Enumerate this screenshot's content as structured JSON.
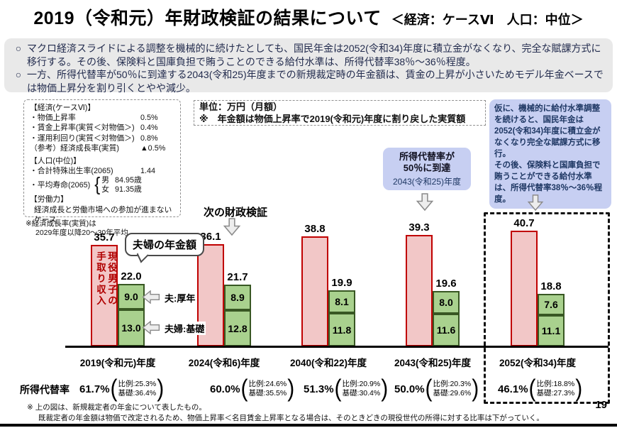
{
  "title": {
    "main": "2019（令和元）年財政検証の結果について",
    "case_label": "＜経済：ケースⅥ　人口：中位＞"
  },
  "bullet_marker": "○",
  "bullets": [
    "マクロ経済スライドによる調整を機械的に続けたとしても、国民年金は2052(令和34)年度に積立金がなくなり、完全な賦課方式に移行する。その後、保険料と国庫負担で賄うことのできる給付水準は、所得代替率38％～36％程度。",
    "一方、所得代替率が50％に到達する2043(令和25)年度までの新規裁定時の年金額は、賃金の上昇が小さいためモデル年金ベースでは物価上昇分を割り引くとやや減少。"
  ],
  "param_box": {
    "econ_header": "【経済(ケースⅥ)】",
    "econ_rows": [
      {
        "label": "・物価上昇率",
        "value": "0.5%"
      },
      {
        "label": "・賃金上昇率(実質＜対物価＞)",
        "value": "0.4%"
      },
      {
        "label": "・運用利回り(実質＜対物価＞)",
        "value": "0.8%"
      },
      {
        "label": "（参考）経済成長率(実質)",
        "value": "▲0.5%"
      }
    ],
    "pop_header": "【人口(中位)】",
    "birth_label": "・合計特殊出生率(2065)",
    "birth_value": "1.44",
    "life_label": "・平均寿命(2065)",
    "life_male_label": "男",
    "life_male_value": "84.95歳",
    "life_female_label": "女",
    "life_female_value": "91.35歳",
    "labor_header": "【労働力】",
    "labor_note": "経済成長と労働市場への参加が進まないケース",
    "footnote_line1": "※経済成長率(実質)は",
    "footnote_line2": "2029年度以降20～30年平均"
  },
  "unit_box": {
    "line1": "単位：万円（月額）",
    "line2": "※　年金額は物価上昇率で2019(令和元)年度に割り戻した実質額"
  },
  "blue_note": {
    "p1": "仮に、機械的に給付水準調整を続けると、国民年金は2052(令和34)年度に積立金がなくなり完全な賦課方式に移行。",
    "p2": "その後、保険料と国庫負担で賄うことができる給付水準は、所得代替率38％～36％程度。"
  },
  "callout": {
    "line1": "所得代替率が",
    "line2": "50％に到達",
    "line3": "2043(令和25)年度"
  },
  "next_verification": {
    "label": "次の財政検証"
  },
  "bubble": {
    "label": "夫婦の年金額"
  },
  "rate_row": {
    "label": "所得代替率"
  },
  "chart_data": {
    "type": "bar",
    "title": "夫婦の年金額と現役男子の手取り収入",
    "unit": "万円（月額）",
    "wage_bar_text": [
      "現役男子の",
      "手取り収入"
    ],
    "annotations": {
      "kosei": "夫:厚年",
      "kiso": "夫婦:基礎"
    },
    "legend": [
      "現役男子の手取り収入(ピンク)",
      "夫婦の年金額(緑:厚年+基礎)"
    ],
    "ylim": [
      0,
      45
    ],
    "grid": false,
    "categories": [
      "2019(令和元)年度",
      "2024(令和6)年度",
      "2040(令和22)年度",
      "2043(令和25)年度",
      "2052(令和34)年度"
    ],
    "groups": [
      {
        "year": "2019(令和元)年度",
        "wage": 35.7,
        "pension_total": 22.0,
        "kosei": 9.0,
        "kiso": 13.0,
        "rate": "61.7%",
        "details": [
          "比例:25.3%",
          "基礎:36.4%"
        ]
      },
      {
        "year": "2024(令和6)年度",
        "wage": 36.1,
        "pension_total": 21.7,
        "kosei": 8.9,
        "kiso": 12.8,
        "rate": "60.0%",
        "details": [
          "比例:24.6%",
          "基礎:35.5%"
        ]
      },
      {
        "year": "2040(令和22)年度",
        "wage": 38.8,
        "pension_total": 19.9,
        "kosei": 8.1,
        "kiso": 11.8,
        "rate": "51.3%",
        "details": [
          "比例:20.9%",
          "基礎:30.4%"
        ]
      },
      {
        "year": "2043(令和25)年度",
        "wage": 39.3,
        "pension_total": 19.6,
        "kosei": 8.0,
        "kiso": 11.6,
        "rate": "50.0%",
        "details": [
          "比例:20.3%",
          "基礎:29.6%"
        ]
      },
      {
        "year": "2052(令和34)年度",
        "wage": 40.7,
        "pension_total": 18.8,
        "kosei": 7.6,
        "kiso": 11.1,
        "rate": "46.1%",
        "details": [
          "比例:18.8%",
          "基礎:27.3%"
        ]
      }
    ]
  },
  "footer": {
    "line1": "※ 上の図は、新規裁定者の年金について表したもの。",
    "line2": "既裁定者の年金額は物価で改定されるため、物価上昇率＜名目賃金上昇率となる場合は、そのときどきの現役世代の所得に対する比率は下がっていく。"
  },
  "page_number": "19",
  "colors": {
    "wage_bar_fill": "#f2c7c7",
    "wage_bar_border": "#c00000",
    "pension_bar_fill": "#a9d18e",
    "pension_bar_border": "#385723",
    "note_box_bg": "#c7cff2",
    "note_text": "#1f3864",
    "summary_box_bg": "#e9e9e9"
  }
}
